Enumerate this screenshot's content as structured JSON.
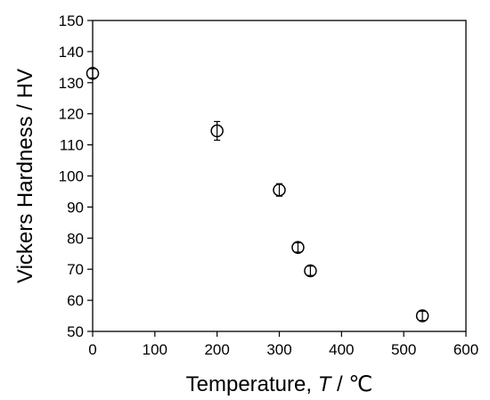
{
  "chart_data": {
    "type": "scatter",
    "title": "",
    "xlabel_prefix": "Temperature, ",
    "xlabel_symbol": "T",
    "xlabel_suffix": " / ℃",
    "ylabel": "Vickers Hardness / HV",
    "xlim": [
      0,
      600
    ],
    "ylim": [
      50,
      150
    ],
    "xticks": [
      0,
      100,
      200,
      300,
      400,
      500,
      600
    ],
    "yticks": [
      50,
      60,
      70,
      80,
      90,
      100,
      110,
      120,
      130,
      140,
      150
    ],
    "grid": false,
    "marker": "open-circle",
    "series": [
      {
        "x": [
          0,
          200,
          300,
          330,
          350,
          530
        ],
        "y": [
          133,
          114.5,
          95.5,
          77,
          69.5,
          55
        ],
        "err": [
          1.5,
          3,
          2,
          1.5,
          1.5,
          1.5
        ]
      }
    ]
  }
}
